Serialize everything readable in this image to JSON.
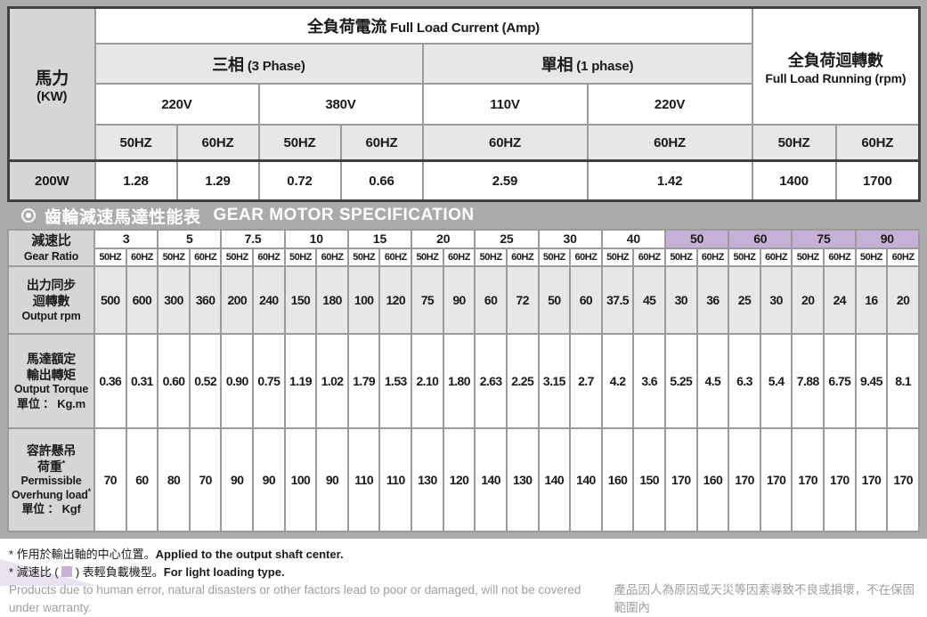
{
  "colors": {
    "plate_gray": "#ababab",
    "header_cell_gray": "#d6d6d6",
    "subheader_gray": "#e7e7e7",
    "light_type_purple": "#c5b1d5",
    "dark_border": "#414141",
    "note_gray": "#9f9f9f"
  },
  "top_table": {
    "corner_label_zh": "馬力",
    "corner_label_en": "(KW)",
    "current_header_zh": "全負荷電流",
    "current_header_en": "Full Load Current (Amp)",
    "three_phase_zh": "三相",
    "three_phase_en": "(3 Phase)",
    "single_phase_zh": "單相",
    "single_phase_en": "(1 phase)",
    "running_header_zh": "全負荷迴轉數",
    "running_header_en": "Full Load Running (rpm)",
    "voltage_three_220": "220V",
    "voltage_three_380": "380V",
    "voltage_single_110": "110V",
    "voltage_single_220": "220V",
    "hz_cells": [
      "50HZ",
      "60HZ",
      "50HZ",
      "60HZ",
      "60HZ",
      "60HZ",
      "50HZ",
      "60HZ"
    ],
    "row_label": "200W",
    "row_values": [
      "1.28",
      "1.29",
      "0.72",
      "0.66",
      "2.59",
      "1.42",
      "1400",
      "1700"
    ]
  },
  "section_header": {
    "title_zh": "齒輪減速馬達性能表",
    "title_en": "GEAR MOTOR SPECIFICATION"
  },
  "spec_table": {
    "gear_ratio_zh": "減速比",
    "gear_ratio_en": "Gear Ratio",
    "hz_pair": [
      "50HZ",
      "60HZ"
    ],
    "ratios": [
      {
        "value": "3",
        "light": false
      },
      {
        "value": "5",
        "light": false
      },
      {
        "value": "7.5",
        "light": false
      },
      {
        "value": "10",
        "light": false
      },
      {
        "value": "15",
        "light": false
      },
      {
        "value": "20",
        "light": false
      },
      {
        "value": "25",
        "light": false
      },
      {
        "value": "30",
        "light": false
      },
      {
        "value": "40",
        "light": false
      },
      {
        "value": "50",
        "light": true
      },
      {
        "value": "60",
        "light": true
      },
      {
        "value": "75",
        "light": true
      },
      {
        "value": "90",
        "light": true
      }
    ],
    "rows": [
      {
        "name": "output-rpm",
        "shaded": true,
        "label_lines": [
          [
            "出力同步",
            "zh"
          ],
          [
            "迴轉數",
            "zh"
          ],
          [
            "Output rpm",
            "en"
          ]
        ],
        "values": [
          "500",
          "600",
          "300",
          "360",
          "200",
          "240",
          "150",
          "180",
          "100",
          "120",
          "75",
          "90",
          "60",
          "72",
          "50",
          "60",
          "37.5",
          "45",
          "30",
          "36",
          "25",
          "30",
          "20",
          "24",
          "16",
          "20"
        ]
      },
      {
        "name": "output-torque",
        "shaded": false,
        "label_lines": [
          [
            "馬達額定",
            "zh"
          ],
          [
            "輸出轉矩",
            "zh"
          ],
          [
            "Output Torque",
            "en"
          ],
          [
            "單位 ： Kg.m",
            "zh-sm"
          ]
        ],
        "values": [
          "0.36",
          "0.31",
          "0.60",
          "0.52",
          "0.90",
          "0.75",
          "1.19",
          "1.02",
          "1.79",
          "1.53",
          "2.10",
          "1.80",
          "2.63",
          "2.25",
          "3.15",
          "2.7",
          "4.2",
          "3.6",
          "5.25",
          "4.5",
          "6.3",
          "5.4",
          "7.88",
          "6.75",
          "9.45",
          "8.1"
        ]
      },
      {
        "name": "overhung-load",
        "shaded": false,
        "label_lines": [
          [
            "容許懸吊",
            "zh"
          ],
          [
            "荷重*",
            "zh"
          ],
          [
            "Permissible",
            "en"
          ],
          [
            "Overhung load*",
            "en"
          ],
          [
            "單位 ： Kgf",
            "zh-sm"
          ]
        ],
        "values": [
          "70",
          "60",
          "80",
          "70",
          "90",
          "90",
          "100",
          "90",
          "110",
          "110",
          "130",
          "120",
          "140",
          "130",
          "140",
          "140",
          "160",
          "150",
          "170",
          "160",
          "170",
          "170",
          "170",
          "170",
          "170",
          "170"
        ]
      }
    ]
  },
  "footnotes": {
    "note1_zh": "* 作用於輸出軸的中心位置。",
    "note1_en": "Applied to the output shaft center.",
    "note2_zh_a": "* 減速比 ( ",
    "note2_zh_b": " ) 表輕負載機型。",
    "note2_en": "For light loading type.",
    "warranty_en": "Products due to human error, natural disasters or other factors lead to poor or damaged, will not be covered under warranty.",
    "warranty_zh": "產品因人為原因或天災等因素導致不良或損壞，不在保固範圍內"
  }
}
